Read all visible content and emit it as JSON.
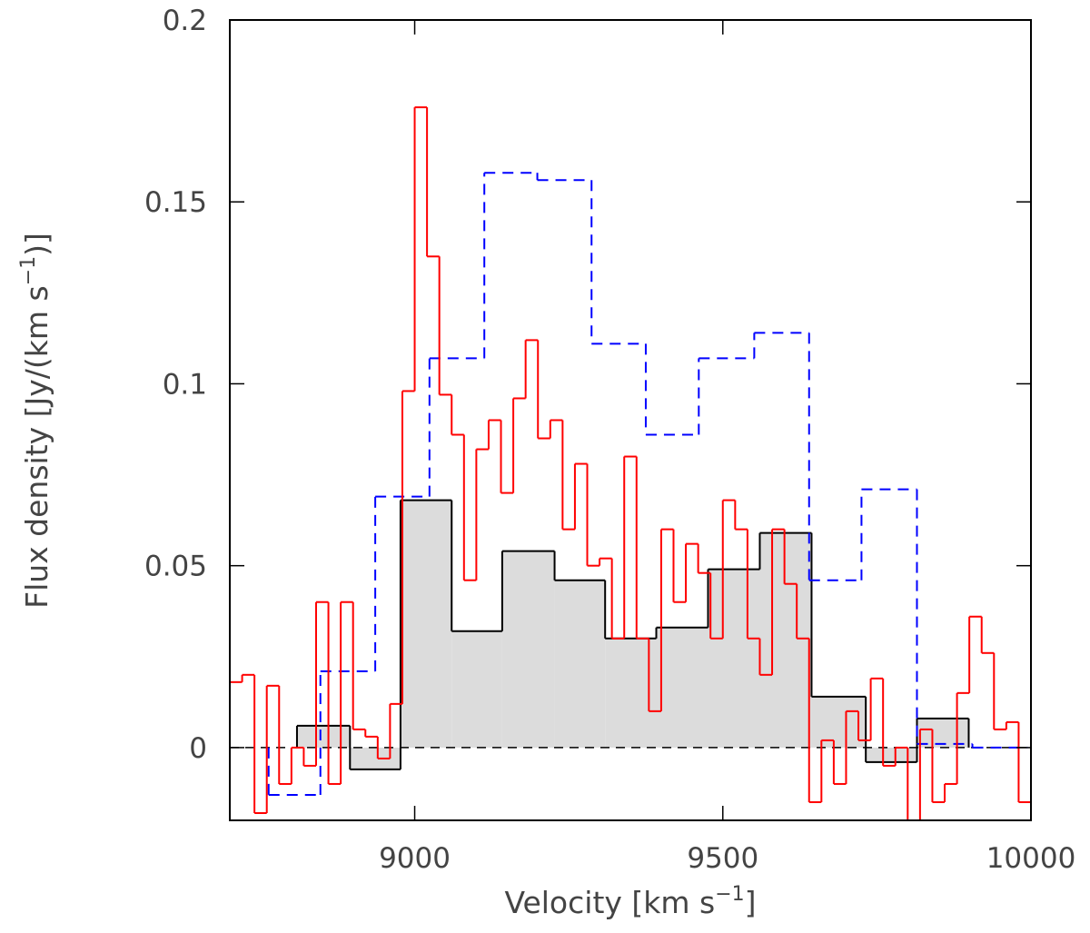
{
  "chart_data": {
    "type": "step",
    "xlabel": [
      "Velocity [km s",
      "−1",
      "]"
    ],
    "ylabel": [
      "Flux density [Jy/(km s",
      "−1",
      ")]"
    ],
    "xlim": [
      8700,
      10000
    ],
    "ylim": [
      -0.02,
      0.2
    ],
    "xticks": [
      9000,
      9500,
      10000
    ],
    "yticks": [
      0,
      0.05,
      0.1,
      0.15,
      0.2
    ],
    "zero_line": true,
    "series": [
      {
        "color": "#000000",
        "fill": "#dcdcdc",
        "dashed": false,
        "bins": [
          8809,
          8895,
          8977,
          9060,
          9142,
          9227,
          9309,
          9392,
          9476,
          9560,
          9644,
          9732,
          9815,
          9899
        ],
        "values": [
          0.006,
          -0.006,
          0.068,
          0.032,
          0.054,
          0.046,
          0.03,
          0.033,
          0.049,
          0.059,
          0.014,
          -0.004,
          0.008
        ]
      },
      {
        "color": "#0000ff",
        "dashed": true,
        "bins": [
          8763,
          8847,
          8936,
          9024,
          9113,
          9199,
          9287,
          9375,
          9461,
          9551,
          9640,
          9725,
          9815,
          9905,
          9994
        ],
        "values": [
          -0.013,
          0.021,
          0.069,
          0.107,
          0.158,
          0.156,
          0.111,
          0.086,
          0.107,
          0.114,
          0.046,
          0.071,
          0.001,
          0.0
        ]
      },
      {
        "color": "#ff0000",
        "dashed": false,
        "bins": [
          8700,
          8720,
          8740,
          8760,
          8780,
          8800,
          8820,
          8840,
          8860,
          8880,
          8900,
          8920,
          8940,
          8960,
          8980,
          9000,
          9020,
          9040,
          9060,
          9080,
          9100,
          9120,
          9140,
          9160,
          9180,
          9200,
          9220,
          9240,
          9260,
          9280,
          9300,
          9320,
          9340,
          9360,
          9380,
          9400,
          9420,
          9440,
          9460,
          9480,
          9500,
          9520,
          9540,
          9560,
          9580,
          9600,
          9620,
          9640,
          9660,
          9680,
          9700,
          9720,
          9740,
          9760,
          9780,
          9800,
          9820,
          9840,
          9860,
          9880,
          9900,
          9920,
          9940,
          9960,
          9980,
          10000
        ],
        "values": [
          0.018,
          0.02,
          -0.018,
          0.017,
          -0.01,
          0.0,
          -0.005,
          0.04,
          -0.01,
          0.04,
          0.005,
          0.003,
          -0.003,
          0.012,
          0.098,
          0.176,
          0.135,
          0.097,
          0.086,
          0.046,
          0.082,
          0.09,
          0.07,
          0.096,
          0.112,
          0.085,
          0.09,
          0.06,
          0.078,
          0.05,
          0.052,
          0.03,
          0.08,
          0.03,
          0.01,
          0.06,
          0.04,
          0.056,
          0.048,
          0.03,
          0.068,
          0.06,
          0.03,
          0.02,
          0.06,
          0.045,
          0.03,
          -0.015,
          0.002,
          -0.01,
          0.01,
          0.002,
          0.019,
          -0.005,
          0.0,
          -0.02,
          0.005,
          -0.015,
          -0.01,
          0.015,
          0.036,
          0.026,
          0.005,
          0.007,
          -0.015
        ]
      }
    ]
  }
}
